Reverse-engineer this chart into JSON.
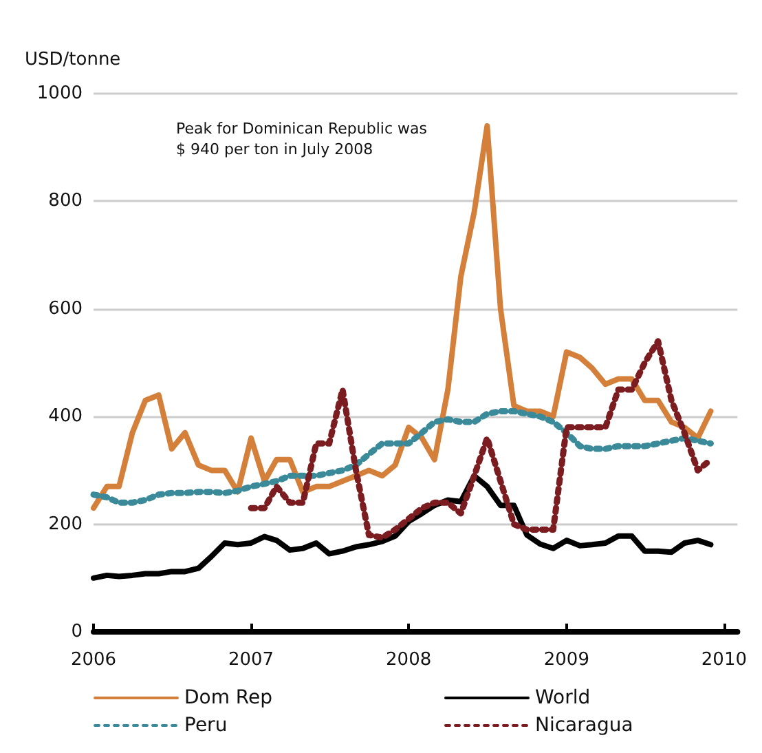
{
  "chart_data": {
    "type": "line",
    "ylabel": "USD/tonne",
    "annotations": [
      "Peak for Dominican Republic was\n$ 940 per ton in July 2008"
    ],
    "x": [
      "2006-01",
      "2006-02",
      "2006-03",
      "2006-04",
      "2006-05",
      "2006-06",
      "2006-07",
      "2006-08",
      "2006-09",
      "2006-10",
      "2006-11",
      "2006-12",
      "2007-01",
      "2007-02",
      "2007-03",
      "2007-04",
      "2007-05",
      "2007-06",
      "2007-07",
      "2007-08",
      "2007-09",
      "2007-10",
      "2007-11",
      "2007-12",
      "2008-01",
      "2008-02",
      "2008-03",
      "2008-04",
      "2008-05",
      "2008-06",
      "2008-07",
      "2008-08",
      "2008-09",
      "2008-10",
      "2008-11",
      "2008-12",
      "2009-01",
      "2009-02",
      "2009-03",
      "2009-04",
      "2009-05",
      "2009-06",
      "2009-07",
      "2009-08",
      "2009-09",
      "2009-10",
      "2009-11",
      "2009-12"
    ],
    "series": [
      {
        "name": "Dom Rep",
        "color": "#d4803a",
        "line_style": "solid",
        "values": [
          230,
          270,
          270,
          370,
          430,
          440,
          340,
          370,
          310,
          300,
          300,
          260,
          360,
          280,
          320,
          320,
          260,
          270,
          270,
          280,
          290,
          300,
          290,
          310,
          380,
          360,
          320,
          450,
          660,
          780,
          940,
          600,
          420,
          410,
          410,
          400,
          520,
          510,
          490,
          460,
          470,
          470,
          430,
          430,
          390,
          380,
          360,
          410
        ]
      },
      {
        "name": "Peru",
        "color": "#3a8a99",
        "line_style": "dotted",
        "values": [
          255,
          250,
          240,
          240,
          245,
          255,
          258,
          258,
          260,
          260,
          258,
          262,
          270,
          275,
          280,
          290,
          290,
          290,
          295,
          300,
          310,
          330,
          350,
          350,
          350,
          370,
          390,
          395,
          390,
          390,
          405,
          410,
          410,
          405,
          400,
          390,
          370,
          345,
          340,
          340,
          345,
          345,
          345,
          350,
          355,
          360,
          355,
          350
        ]
      },
      {
        "name": "World",
        "color": "#000000",
        "line_style": "solid",
        "values": [
          100,
          105,
          103,
          105,
          108,
          108,
          112,
          112,
          118,
          140,
          165,
          162,
          165,
          177,
          170,
          152,
          155,
          165,
          145,
          150,
          158,
          162,
          168,
          178,
          205,
          220,
          235,
          245,
          242,
          290,
          270,
          235,
          235,
          180,
          163,
          155,
          170,
          160,
          162,
          165,
          178,
          178,
          150,
          150,
          148,
          165,
          170,
          162
        ]
      },
      {
        "name": "Nicaragua",
        "color": "#7a1c20",
        "line_style": "dotted",
        "values": [
          null,
          null,
          null,
          null,
          null,
          null,
          null,
          null,
          null,
          null,
          null,
          null,
          230,
          230,
          270,
          240,
          240,
          350,
          350,
          450,
          300,
          180,
          175,
          190,
          210,
          230,
          240,
          240,
          220,
          290,
          360,
          280,
          200,
          190,
          190,
          190,
          380,
          380,
          380,
          380,
          450,
          450,
          500,
          540,
          430,
          370,
          300,
          320
        ]
      }
    ],
    "xlim": [
      "2006-01",
      "2010-02"
    ],
    "xticks": [
      "2006",
      "2007",
      "2008",
      "2009",
      "2010"
    ],
    "ylim": [
      0,
      1000
    ],
    "yticks": [
      0,
      200,
      400,
      600,
      800,
      1000
    ],
    "grid": "y",
    "legend": "bottom",
    "marker": "none"
  }
}
